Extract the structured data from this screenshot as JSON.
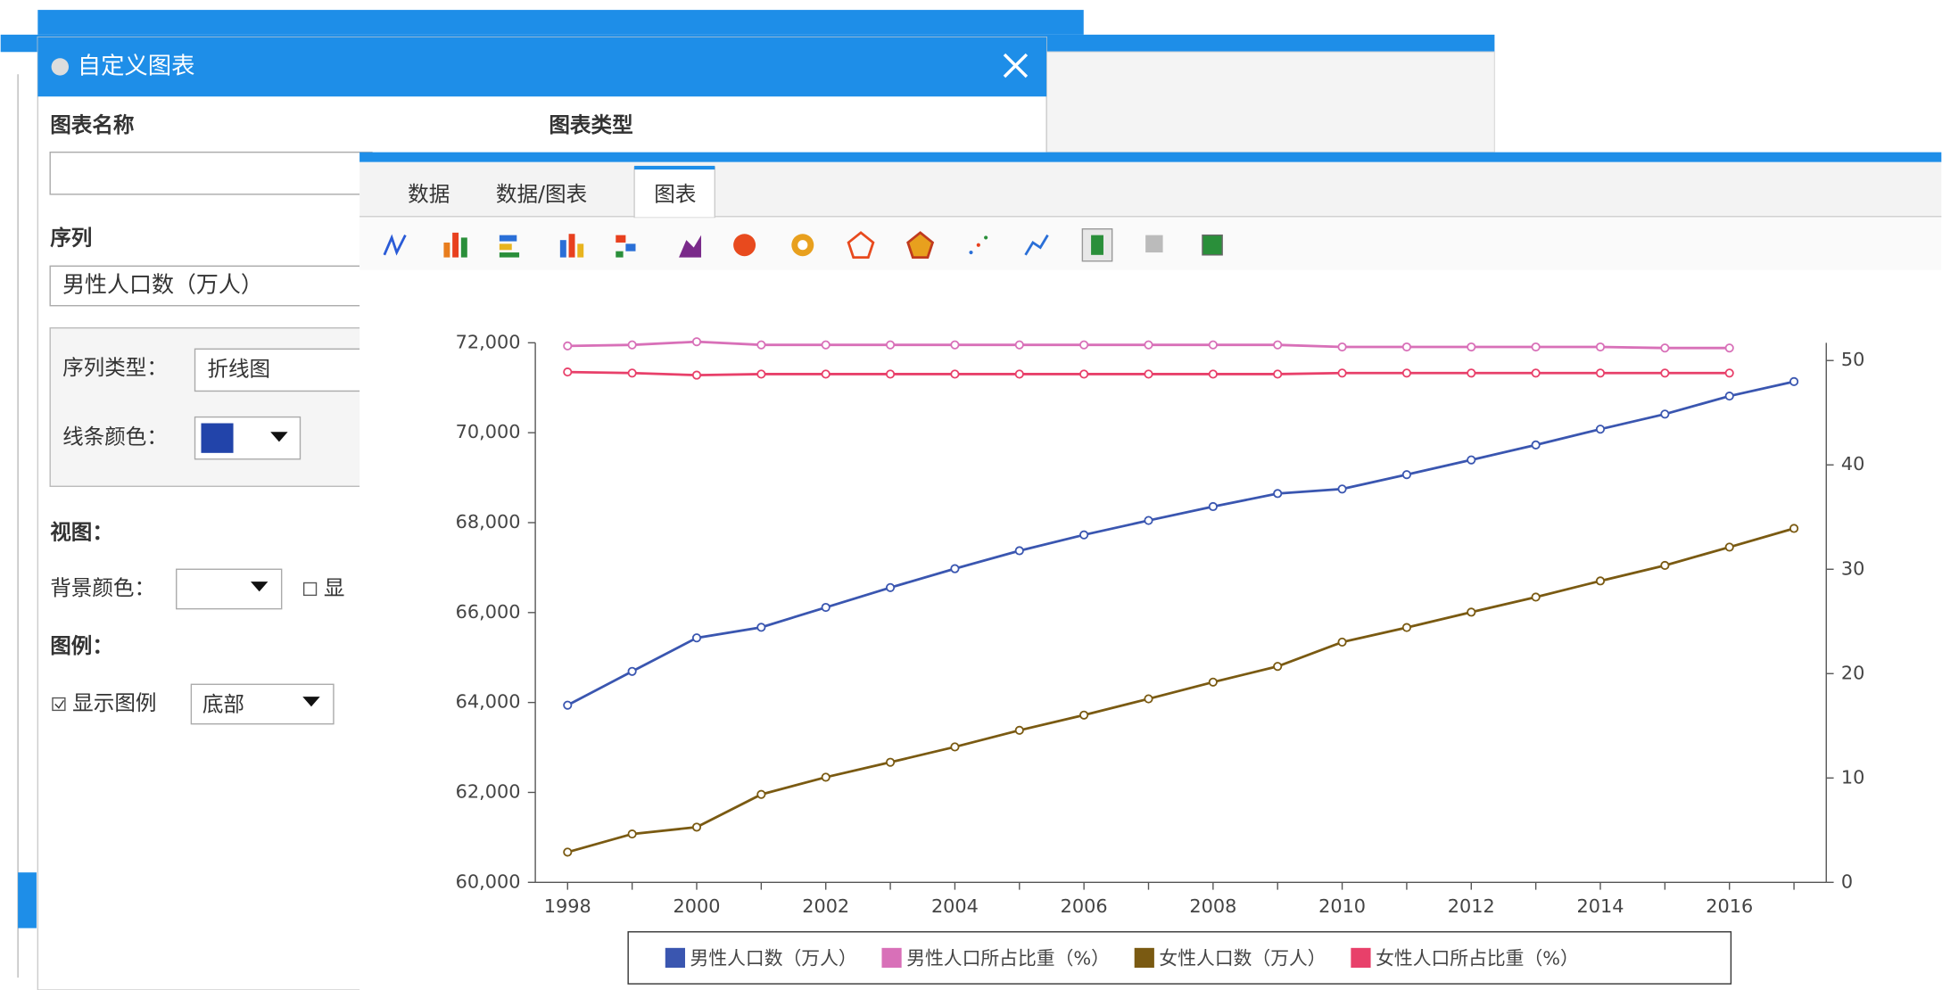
{
  "dialog": {
    "title": "自定义图表",
    "chart_name_label": "图表名称",
    "chart_type_label": "图表类型",
    "series_label": "序列",
    "series_select": "男性人口数（万人）",
    "series_type_label": "序列类型：",
    "series_type_value": "折线图",
    "line_color_label": "线条颜色：",
    "view_label": "视图：",
    "bg_color_label": "背景颜色：",
    "show_label": "显",
    "legend_label": "图例：",
    "show_legend_label": "显示图例",
    "legend_position": "底部"
  },
  "tabs": [
    "数据",
    "数据/图表",
    "图表"
  ],
  "chart_data": {
    "type": "line",
    "x": [
      1998,
      1999,
      2000,
      2001,
      2002,
      2003,
      2004,
      2005,
      2006,
      2007,
      2008,
      2009,
      2010,
      2011,
      2012,
      2013,
      2014,
      2015,
      2016,
      2017
    ],
    "xlim": [
      1997.5,
      2017.5
    ],
    "xticks": [
      1998,
      2000,
      2002,
      2004,
      2006,
      2008,
      2010,
      2012,
      2014,
      2016
    ],
    "ylim": [
      60000,
      72000
    ],
    "yticks": [
      {
        "value": 60000,
        "label": "60,000"
      },
      {
        "value": 62000,
        "label": "62,000"
      },
      {
        "value": 64000,
        "label": "64,000"
      },
      {
        "value": 66000,
        "label": "66,000"
      },
      {
        "value": 68000,
        "label": "68,000"
      },
      {
        "value": 70000,
        "label": "70,000"
      },
      {
        "value": 72000,
        "label": "72,000"
      }
    ],
    "y2lim": [
      0,
      51.7
    ],
    "y2ticks": [
      0,
      10,
      20,
      30,
      40,
      50
    ],
    "legend": "bottom",
    "series": [
      {
        "name": "男性人口数（万人）",
        "color": "#3a56b0",
        "values": [
          63940,
          64692,
          65437,
          65672,
          66115,
          66556,
          66976,
          67375,
          67728,
          68048,
          68357,
          68647,
          68748,
          69068,
          69395,
          69728,
          70079,
          70414,
          70815,
          71137
        ]
      },
      {
        "name": "男性人口所占比重（%）",
        "color": "#d870b8",
        "axis": "y2",
        "values": [
          51.4,
          51.5,
          51.8,
          51.5,
          51.5,
          51.5,
          51.5,
          51.5,
          51.5,
          51.5,
          51.5,
          51.5,
          51.3,
          51.3,
          51.3,
          51.3,
          51.3,
          51.2,
          51.2,
          null
        ]
      },
      {
        "name": "女性人口数（万人）",
        "color": "#7a5a12",
        "values": [
          60672,
          61075,
          61228,
          61955,
          62338,
          62671,
          63012,
          63381,
          63720,
          64081,
          64453,
          64803,
          65343,
          65667,
          66009,
          66344,
          66703,
          67048,
          67456,
          67871
        ]
      },
      {
        "name": "女性人口所占比重（%）",
        "color": "#e8406a",
        "axis": "y2",
        "values": [
          48.9,
          48.8,
          48.6,
          48.7,
          48.7,
          48.7,
          48.7,
          48.7,
          48.7,
          48.7,
          48.7,
          48.7,
          48.8,
          48.8,
          48.8,
          48.8,
          48.8,
          48.8,
          48.8,
          null
        ]
      }
    ]
  }
}
